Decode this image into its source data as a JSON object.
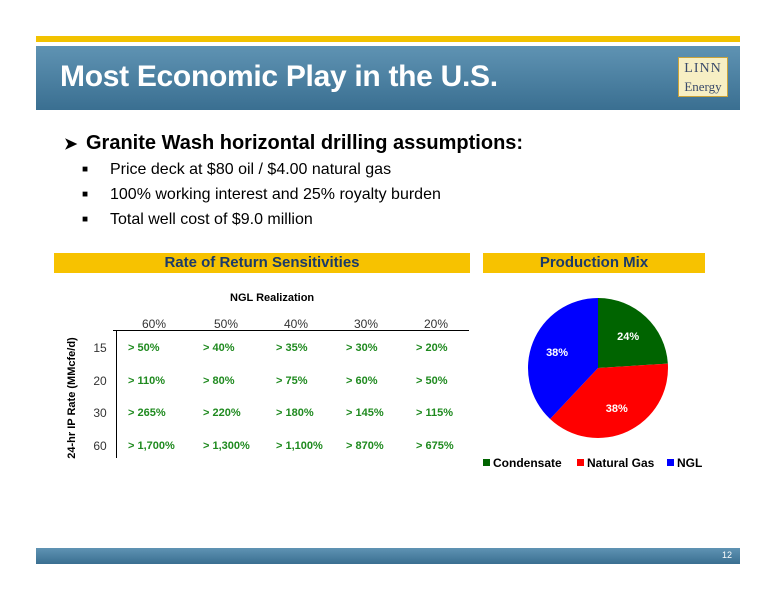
{
  "slide": {
    "title": "Most Economic Play in the U.S.",
    "logo_line1": "LINN",
    "logo_line2": "Energy",
    "page_number": "12"
  },
  "assumptions": {
    "heading": "Granite Wash horizontal drilling assumptions:",
    "bullets": [
      "Price deck at $80 oil / $4.00 natural gas",
      "100% working interest and 25% royalty burden",
      "Total well cost of $9.0 million"
    ]
  },
  "sensitivity": {
    "band_title": "Rate of Return Sensitivities",
    "table_title": "NGL Realization",
    "y_axis_label": "24-hr IP Rate (MMcfe/d)",
    "columns": [
      "60%",
      "50%",
      "40%",
      "30%",
      "20%"
    ],
    "rows": [
      {
        "rate": "15",
        "values": [
          "> 50%",
          "> 40%",
          "> 35%",
          "> 30%",
          "> 20%"
        ]
      },
      {
        "rate": "20",
        "values": [
          "> 110%",
          "> 80%",
          "> 75%",
          "> 60%",
          "> 50%"
        ]
      },
      {
        "rate": "30",
        "values": [
          "> 265%",
          "> 220%",
          "> 180%",
          "> 145%",
          "> 115%"
        ]
      },
      {
        "rate": "60",
        "values": [
          "> 1,700%",
          "> 1,300%",
          "> 1,100%",
          "> 870%",
          "> 675%"
        ]
      }
    ]
  },
  "chart_data": {
    "type": "pie",
    "title": "Production Mix",
    "categories": [
      "Condensate",
      "Natural Gas",
      "NGL"
    ],
    "values": [
      24,
      38,
      38
    ],
    "labels": [
      "24%",
      "38%",
      "38%"
    ],
    "colors": [
      "#006400",
      "#ff0000",
      "#0000ff"
    ],
    "legend": "bottom"
  }
}
